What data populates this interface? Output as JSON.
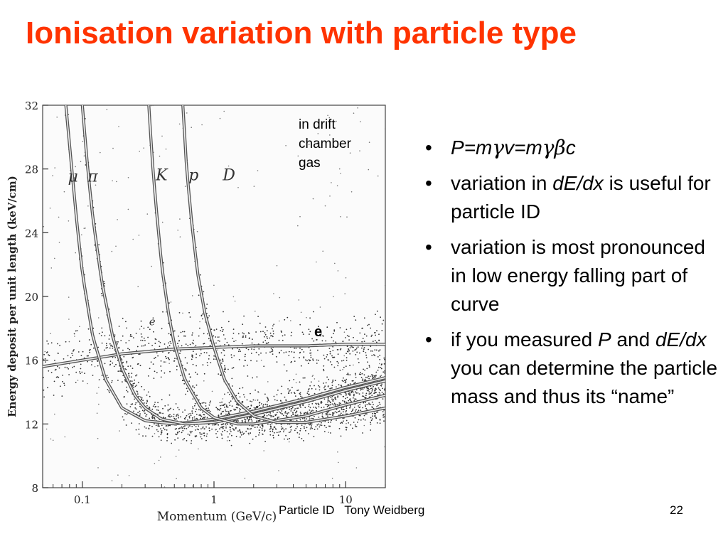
{
  "title": "Ionisation variation with particle type",
  "chart_data": {
    "type": "scatter",
    "xlabel": "Momentum (GeV/c)",
    "ylabel": "Energy deposit per unit length (keV/cm)",
    "xscale": "log",
    "xlim": [
      0.05,
      20
    ],
    "ylim": [
      8,
      32
    ],
    "xticks": [
      0.1,
      1,
      10
    ],
    "xtick_labels": [
      "0.1",
      "1",
      "10"
    ],
    "yticks": [
      8,
      12,
      16,
      20,
      24,
      28,
      32
    ],
    "ytick_labels": [
      "8",
      "12",
      "16",
      "20",
      "24",
      "28",
      "32"
    ],
    "curve_labels": [
      {
        "label": "μ",
        "x": 0.085,
        "y": 27.2
      },
      {
        "label": "π",
        "x": 0.12,
        "y": 27.2
      },
      {
        "label": "K",
        "x": 0.4,
        "y": 27.3
      },
      {
        "label": "p",
        "x": 0.7,
        "y": 27.3
      },
      {
        "label": "D",
        "x": 1.3,
        "y": 27.3
      },
      {
        "label": "e",
        "x": 0.34,
        "y": 18.2
      }
    ],
    "series": [
      {
        "name": "e",
        "x": [
          0.05,
          0.1,
          0.2,
          0.5,
          1,
          2,
          5,
          10,
          20
        ],
        "y": [
          15.6,
          16.0,
          16.4,
          16.7,
          16.8,
          16.9,
          16.9,
          17.0,
          17.0
        ]
      },
      {
        "name": "μ",
        "x": [
          0.075,
          0.08,
          0.09,
          0.1,
          0.12,
          0.15,
          0.2,
          0.3,
          0.5,
          1,
          2,
          5,
          10,
          20
        ],
        "y": [
          32.0,
          29.5,
          25.0,
          21.5,
          17.5,
          14.8,
          13.0,
          12.2,
          12.0,
          12.3,
          12.8,
          13.6,
          14.3,
          14.9
        ]
      },
      {
        "name": "π",
        "x": [
          0.1,
          0.11,
          0.12,
          0.14,
          0.17,
          0.2,
          0.25,
          0.3,
          0.4,
          0.6,
          1,
          2,
          5,
          10,
          20
        ],
        "y": [
          32.0,
          28.0,
          25.0,
          21.0,
          17.5,
          15.5,
          13.8,
          13.0,
          12.3,
          12.0,
          12.1,
          12.6,
          13.4,
          14.1,
          14.7
        ]
      },
      {
        "name": "K",
        "x": [
          0.32,
          0.34,
          0.36,
          0.4,
          0.45,
          0.5,
          0.6,
          0.8,
          1,
          1.5,
          2,
          5,
          10,
          20
        ],
        "y": [
          32.0,
          28.5,
          26.0,
          22.0,
          19.0,
          17.0,
          14.8,
          13.0,
          12.4,
          12.0,
          12.0,
          12.5,
          13.2,
          13.8
        ]
      },
      {
        "name": "p",
        "x": [
          0.58,
          0.62,
          0.68,
          0.75,
          0.85,
          1,
          1.2,
          1.5,
          2,
          3,
          5,
          10,
          20
        ],
        "y": [
          32.0,
          28.0,
          24.5,
          21.5,
          19.0,
          16.8,
          14.8,
          13.4,
          12.5,
          12.1,
          12.1,
          12.5,
          13.0
        ]
      }
    ]
  },
  "annotation": {
    "drift_text": "in drift\nchamber\ngas",
    "e_label": "e"
  },
  "bullets": {
    "b1": {
      "p": "P",
      "eq1": "=m",
      "g1": "γ",
      "v": "v",
      "eq2": "=m",
      "g2": "γ",
      "b": "β",
      "c": "c"
    },
    "b2": {
      "pre": "variation in ",
      "it": "dE/dx",
      "post": " is useful for particle ID"
    },
    "b3": {
      "text": "variation is most pronounced in low energy falling part of curve"
    },
    "b4": {
      "pre": "if you measured ",
      "it1": "P",
      "mid": " and ",
      "it2": "dE/dx",
      "post": " you can determine the particle mass and thus its “name”"
    }
  },
  "footer": {
    "name": "Particle ID   Tony Weidberg",
    "page": "22"
  }
}
